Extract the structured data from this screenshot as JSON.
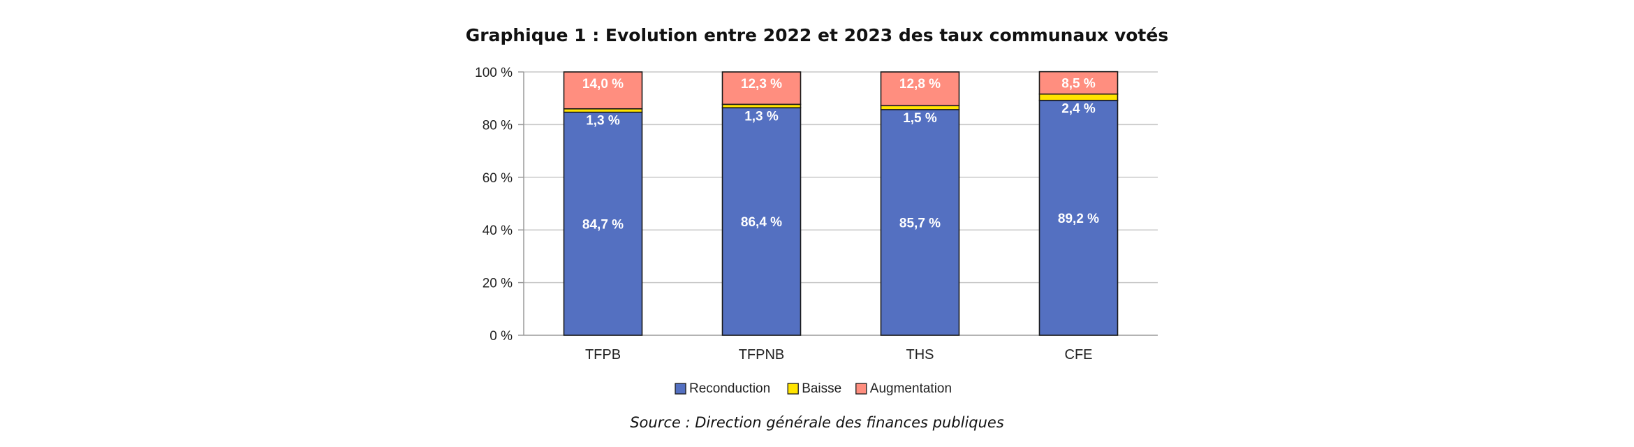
{
  "header": {
    "title": "Graphique 1 : Evolution entre 2022 et 2023 des taux communaux votés"
  },
  "footer": {
    "source": "Source : Direction générale des finances publiques"
  },
  "chart_data": {
    "type": "bar",
    "stacked": true,
    "title": "Graphique 1 : Evolution entre 2022 et 2023 des taux communaux votés",
    "categories": [
      "TFPB",
      "TFPNB",
      "THS",
      "CFE"
    ],
    "series": [
      {
        "name": "Reconduction",
        "color": "#5470c1",
        "values": [
          84.7,
          86.4,
          85.7,
          89.2
        ],
        "labels": [
          "84,7 %",
          "86,4 %",
          "85,7 %",
          "89,2 %"
        ]
      },
      {
        "name": "Baisse",
        "color": "#ffe400",
        "values": [
          1.3,
          1.3,
          1.5,
          2.4
        ],
        "labels": [
          "1,3 %",
          "1,3 %",
          "1,5 %",
          "2,4 %"
        ]
      },
      {
        "name": "Augmentation",
        "color": "#ff8e7f",
        "values": [
          14.0,
          12.3,
          12.8,
          8.5
        ],
        "labels": [
          "14,0 %",
          "12,3 %",
          "12,8 %",
          "8,5 %"
        ]
      }
    ],
    "ylim": [
      0,
      100
    ],
    "yticks": [
      0,
      20,
      40,
      60,
      80,
      100
    ],
    "ytick_labels": [
      "0 %",
      "20 %",
      "40 %",
      "60 %",
      "80 %",
      "100 %"
    ],
    "grid": true,
    "legend_position": "bottom",
    "xlabel": "",
    "ylabel": ""
  }
}
